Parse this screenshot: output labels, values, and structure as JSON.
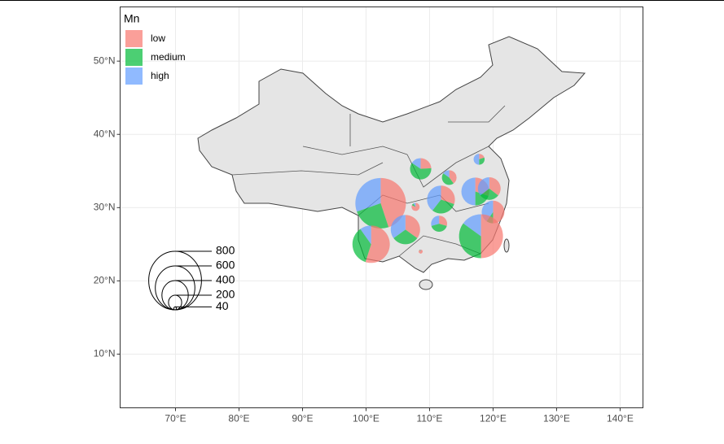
{
  "chart_data": {
    "type": "scatterpie",
    "legend_title": "Mn",
    "groups": [
      "low",
      "medium",
      "high"
    ],
    "colors": [
      "#F8766D",
      "#00BA38",
      "#619CFF"
    ],
    "xlim": [
      61.28,
      143.6
    ],
    "ylim": [
      2.67,
      57.4
    ],
    "xticks": [
      {
        "value": 70,
        "label": "70°E"
      },
      {
        "value": 80,
        "label": "80°E"
      },
      {
        "value": 90,
        "label": "90°E"
      },
      {
        "value": 100,
        "label": "100°E"
      },
      {
        "value": 110,
        "label": "110°E"
      },
      {
        "value": 120,
        "label": "120°E"
      },
      {
        "value": 130,
        "label": "130°E"
      },
      {
        "value": 140,
        "label": "140°E"
      }
    ],
    "yticks": [
      {
        "value": 10,
        "label": "10°N"
      },
      {
        "value": 20,
        "label": "20°N"
      },
      {
        "value": 30,
        "label": "30°N"
      },
      {
        "value": 40,
        "label": "40°N"
      },
      {
        "value": 50,
        "label": "50°N"
      }
    ],
    "grid": true,
    "size_legend": [
      40,
      200,
      400,
      600,
      800
    ],
    "pies": [
      {
        "lon": 102.3,
        "lat": 30.6,
        "values": [
          310,
          170,
          210
        ]
      },
      {
        "lon": 100.8,
        "lat": 25.0,
        "values": [
          280,
          180,
          50
        ]
      },
      {
        "lon": 106.2,
        "lat": 27.0,
        "values": [
          140,
          120,
          140
        ]
      },
      {
        "lon": 108.6,
        "lat": 35.3,
        "values": [
          70,
          175,
          45
        ]
      },
      {
        "lon": 107.8,
        "lat": 30.1,
        "values": [
          90,
          10,
          10
        ]
      },
      {
        "lon": 111.8,
        "lat": 31.1,
        "values": [
          115,
          115,
          150
        ]
      },
      {
        "lon": 113.1,
        "lat": 34.1,
        "values": [
          80,
          90,
          30
        ]
      },
      {
        "lon": 111.5,
        "lat": 27.8,
        "values": [
          65,
          90,
          65
        ]
      },
      {
        "lon": 117.2,
        "lat": 32.2,
        "values": [
          115,
          75,
          190
        ]
      },
      {
        "lon": 119.4,
        "lat": 32.6,
        "values": [
          110,
          90,
          110
        ]
      },
      {
        "lon": 117.8,
        "lat": 36.6,
        "values": [
          30,
          45,
          75
        ]
      },
      {
        "lon": 120.0,
        "lat": 29.4,
        "values": [
          155,
          30,
          125
        ]
      },
      {
        "lon": 118.1,
        "lat": 26.1,
        "values": [
          300,
          210,
          90
        ]
      },
      {
        "lon": 108.6,
        "lat": 24.0,
        "values": [
          50,
          3,
          2
        ]
      }
    ]
  }
}
